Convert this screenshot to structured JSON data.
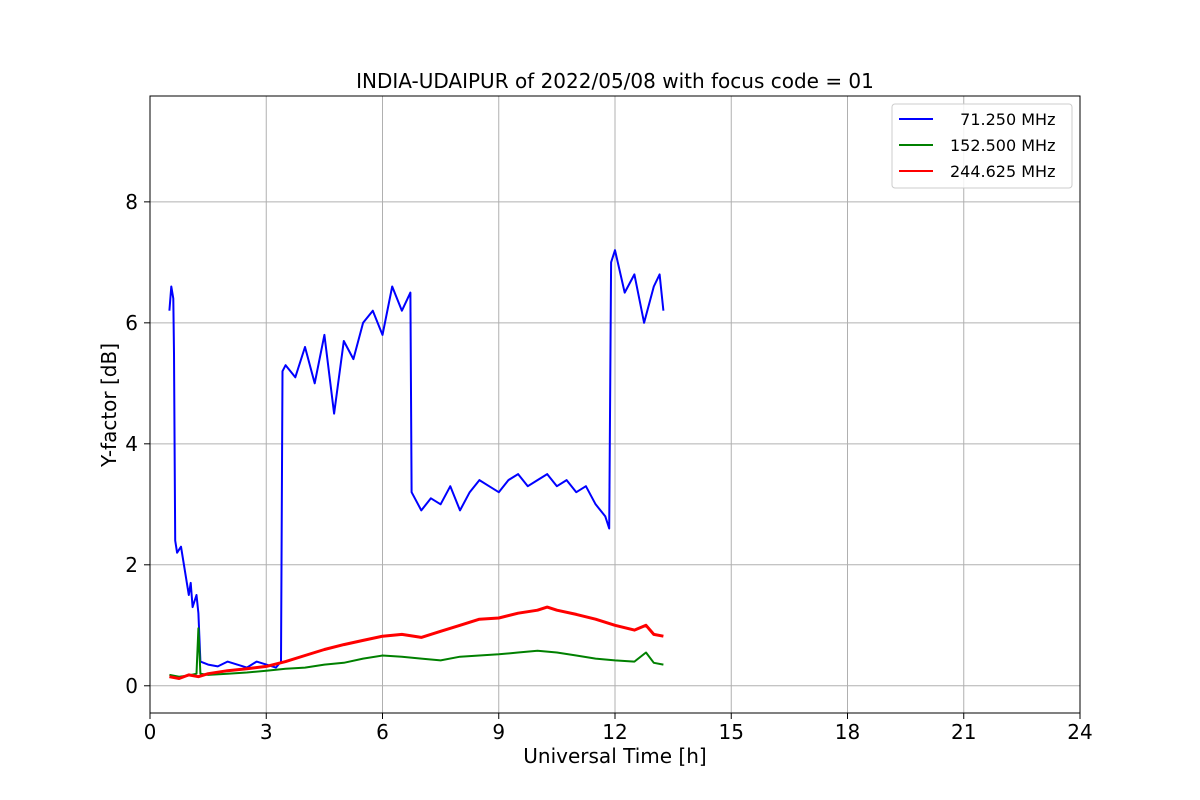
{
  "chart_data": {
    "type": "line",
    "title": "INDIA-UDAIPUR of 2022/05/08 with focus code = 01",
    "xlabel": "Universal Time [h]",
    "ylabel": "Y-factor [dB]",
    "xlim": [
      0,
      24
    ],
    "ylim": [
      -0.45,
      9.75
    ],
    "xticks": [
      0,
      3,
      6,
      9,
      12,
      15,
      18,
      21,
      24
    ],
    "xtick_labels": [
      "0",
      "3",
      "6",
      "9",
      "12",
      "15",
      "18",
      "21",
      "24"
    ],
    "yticks": [
      0,
      2,
      4,
      6,
      8
    ],
    "ytick_labels": [
      "0",
      "2",
      "4",
      "6",
      "8"
    ],
    "grid": true,
    "legend_position": "top-right",
    "series": [
      {
        "name": "  71.250 MHz",
        "color": "#0000ff",
        "x": [
          0.5,
          0.55,
          0.6,
          0.62,
          0.65,
          0.7,
          0.8,
          0.9,
          1.0,
          1.05,
          1.1,
          1.2,
          1.25,
          1.3,
          1.5,
          1.75,
          2.0,
          2.25,
          2.5,
          2.75,
          3.0,
          3.25,
          3.38,
          3.42,
          3.5,
          3.75,
          4.0,
          4.25,
          4.5,
          4.75,
          5.0,
          5.25,
          5.5,
          5.75,
          6.0,
          6.25,
          6.5,
          6.72,
          6.75,
          7.0,
          7.25,
          7.5,
          7.75,
          8.0,
          8.25,
          8.5,
          8.75,
          9.0,
          9.25,
          9.5,
          9.75,
          10.0,
          10.25,
          10.5,
          10.75,
          11.0,
          11.25,
          11.5,
          11.75,
          11.85,
          11.9,
          12.0,
          12.25,
          12.5,
          12.75,
          13.0,
          13.15,
          13.25
        ],
        "y": [
          6.2,
          6.6,
          6.4,
          5.5,
          2.4,
          2.2,
          2.3,
          1.9,
          1.5,
          1.7,
          1.3,
          1.5,
          1.2,
          0.4,
          0.35,
          0.32,
          0.4,
          0.35,
          0.3,
          0.4,
          0.35,
          0.3,
          0.4,
          5.2,
          5.3,
          5.1,
          5.6,
          5.0,
          5.8,
          4.5,
          5.7,
          5.4,
          6.0,
          6.2,
          5.8,
          6.6,
          6.2,
          6.5,
          3.2,
          2.9,
          3.1,
          3.0,
          3.3,
          2.9,
          3.2,
          3.4,
          3.3,
          3.2,
          3.4,
          3.5,
          3.3,
          3.4,
          3.5,
          3.3,
          3.4,
          3.2,
          3.3,
          3.0,
          2.8,
          2.6,
          7.0,
          7.2,
          6.5,
          6.8,
          6.0,
          6.6,
          6.8,
          6.2
        ]
      },
      {
        "name": "152.500 MHz",
        "color": "#008000",
        "x": [
          0.5,
          0.75,
          1.0,
          1.2,
          1.25,
          1.3,
          1.5,
          2.0,
          2.5,
          3.0,
          3.5,
          4.0,
          4.5,
          5.0,
          5.5,
          6.0,
          6.5,
          7.0,
          7.5,
          8.0,
          8.5,
          9.0,
          9.5,
          10.0,
          10.5,
          11.0,
          11.5,
          12.0,
          12.5,
          12.8,
          13.0,
          13.25
        ],
        "y": [
          0.18,
          0.15,
          0.17,
          0.2,
          0.95,
          0.2,
          0.18,
          0.2,
          0.22,
          0.25,
          0.28,
          0.3,
          0.35,
          0.38,
          0.45,
          0.5,
          0.48,
          0.45,
          0.42,
          0.48,
          0.5,
          0.52,
          0.55,
          0.58,
          0.55,
          0.5,
          0.45,
          0.42,
          0.4,
          0.55,
          0.38,
          0.35
        ]
      },
      {
        "name": "244.625 MHz",
        "color": "#ff0000",
        "x": [
          0.5,
          0.75,
          1.0,
          1.25,
          1.5,
          2.0,
          2.5,
          3.0,
          3.5,
          4.0,
          4.5,
          5.0,
          5.5,
          6.0,
          6.5,
          7.0,
          7.5,
          8.0,
          8.5,
          9.0,
          9.5,
          10.0,
          10.25,
          10.5,
          11.0,
          11.5,
          12.0,
          12.5,
          12.8,
          13.0,
          13.25
        ],
        "y": [
          0.15,
          0.12,
          0.18,
          0.15,
          0.2,
          0.25,
          0.28,
          0.32,
          0.4,
          0.5,
          0.6,
          0.68,
          0.75,
          0.82,
          0.85,
          0.8,
          0.9,
          1.0,
          1.1,
          1.12,
          1.2,
          1.25,
          1.3,
          1.25,
          1.18,
          1.1,
          1.0,
          0.92,
          1.0,
          0.85,
          0.82
        ]
      }
    ]
  }
}
